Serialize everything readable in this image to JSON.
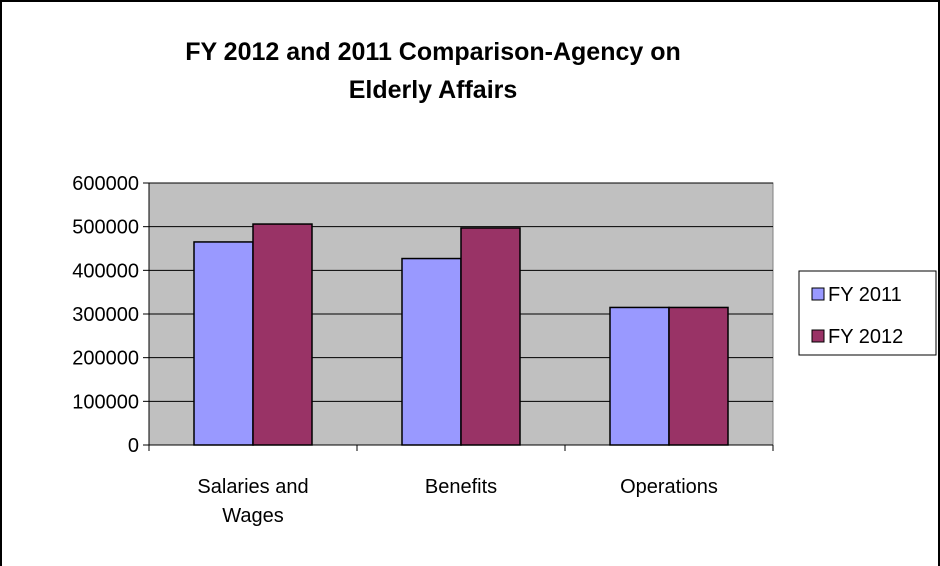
{
  "chart_data": {
    "type": "bar",
    "title_lines": [
      "FY 2012 and 2011 Comparison-Agency on",
      "Elderly Affairs"
    ],
    "categories": [
      [
        "Salaries and",
        "Wages"
      ],
      [
        "Benefits"
      ],
      [
        "Operations"
      ]
    ],
    "series": [
      {
        "name": "FY 2011",
        "values": [
          465000,
          427000,
          315000
        ],
        "color": "#9999ff"
      },
      {
        "name": "FY 2012",
        "values": [
          506000,
          497000,
          315000
        ],
        "color": "#993366"
      }
    ],
    "ylim": [
      0,
      600000
    ],
    "yticks": [
      0,
      100000,
      200000,
      300000,
      400000,
      500000,
      600000
    ],
    "ytick_labels": [
      "0",
      "100000",
      "200000",
      "300000",
      "400000",
      "500000",
      "600000"
    ],
    "grid": true,
    "plot_background": "#c0c0c0",
    "legend_position": "right"
  }
}
